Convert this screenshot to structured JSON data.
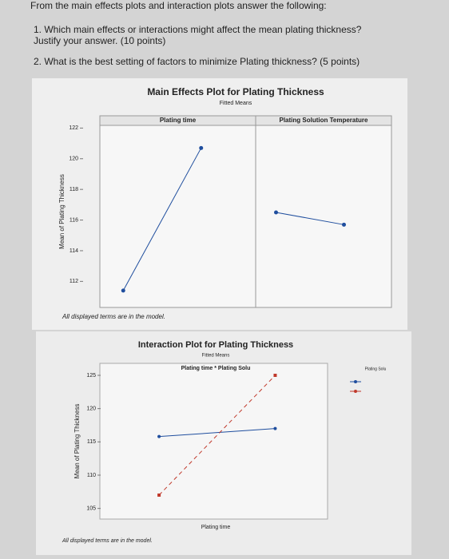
{
  "header": {
    "intro": "From the main effects plots and interaction plots answer the following:",
    "q1_line1": "1. Which main effects or interactions might affect the mean plating thickness?",
    "q1_line2": "Justify your answer. (10 points)",
    "q2": "2. What is the best setting of factors to minimize Plating thickness? (5 points)"
  },
  "chart_data": [
    {
      "type": "main-effects",
      "title": "Main Effects Plot for Plating Thickness",
      "subtitle": "Fitted Means",
      "y_label": "Mean of Plating Thickness",
      "note": "All displayed terms are in the model.",
      "color": "#1f4e9e",
      "ylim": [
        110.3,
        122.8
      ],
      "yticks": [
        112,
        114,
        116,
        118,
        120,
        122
      ],
      "panels": [
        {
          "label": "Plating time",
          "categories": [
            null,
            null
          ],
          "values": [
            111.4,
            120.7
          ]
        },
        {
          "label": "Plating Solution Temperature",
          "categories": [
            null,
            null
          ],
          "values": [
            116.5,
            115.7
          ]
        }
      ]
    },
    {
      "type": "interaction",
      "title": "Interaction Plot for Plating Thickness",
      "subtitle": "Fitted Means",
      "strip": "Plating time * Plating Solu",
      "x_label": "Plating time",
      "y_label": "Mean of Plating Thickness",
      "legend_title": "Plating Solu",
      "note": "All displayed terms are in the model.",
      "ylim": [
        103.4,
        126.8
      ],
      "yticks": [
        105,
        110,
        115,
        120,
        125
      ],
      "categories": [
        null,
        null
      ],
      "series": [
        {
          "color": "#1f4e9e",
          "dash": "none",
          "values": [
            115.8,
            117.0
          ]
        },
        {
          "color": "#c0392b",
          "dash": "5 4",
          "values": [
            107.0,
            125.0
          ]
        }
      ]
    }
  ]
}
